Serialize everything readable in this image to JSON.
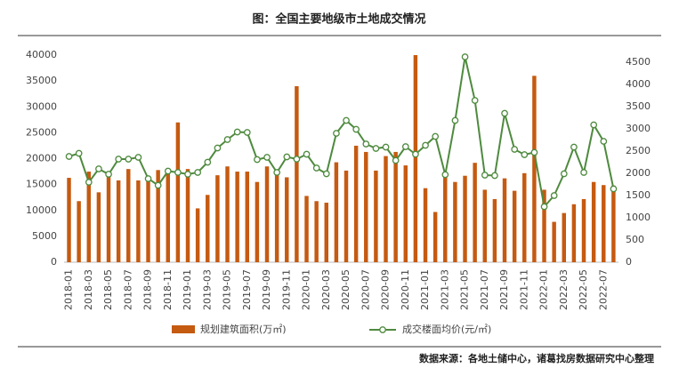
{
  "chart_data": {
    "type": "bar_line",
    "title": "图：全国主要地级市土地成交情况",
    "source": "数据来源：各地土储中心，诸葛找房数据研究中心整理",
    "categories": [
      "2018-01",
      null,
      "2018-03",
      null,
      "2018-05",
      null,
      "2018-07",
      null,
      "2018-09",
      null,
      "2018-11",
      null,
      "2019-01",
      null,
      "2019-03",
      null,
      "2019-05",
      null,
      "2019-07",
      null,
      "2019-09",
      null,
      "2019-11",
      null,
      "2020-01",
      null,
      "2020-03",
      null,
      "2020-05",
      null,
      "2020-07",
      null,
      "2020-09",
      null,
      "2020-11",
      null,
      "2021-01",
      null,
      "2021-03",
      null,
      "2021-05",
      null,
      "2021-07",
      null,
      "2021-09",
      null,
      "2021-11",
      null,
      "2022-01",
      null,
      "2022-03",
      null,
      "2022-05",
      null,
      "2022-07",
      null
    ],
    "series": [
      {
        "name": "规划建筑面积(万㎡)",
        "color": "#c55a11",
        "values": [
          16300,
          11800,
          17500,
          13500,
          17000,
          15800,
          18000,
          15800,
          15800,
          17800,
          17800,
          27000,
          18000,
          10400,
          13000,
          16800,
          18500,
          17500,
          17500,
          15500,
          18500,
          17500,
          16400,
          34000,
          12800,
          11800,
          11500,
          19300,
          17700,
          22500,
          21300,
          17700,
          20500,
          21300,
          18700,
          40000,
          14300,
          9700,
          16800,
          15500,
          16700,
          19200,
          14000,
          12200,
          16200,
          13800,
          17200,
          36000,
          14000,
          7800,
          9500,
          11200,
          12200,
          15500,
          14900,
          14800
        ]
      },
      {
        "name": "成交楼面均价(元/㎡)",
        "color": "#4e8a3e",
        "axis": "y2",
        "values": [
          2380,
          2450,
          1800,
          2100,
          1980,
          2320,
          2320,
          2360,
          1880,
          1730,
          2050,
          2020,
          1980,
          2020,
          2250,
          2570,
          2760,
          2930,
          2920,
          2310,
          2360,
          2020,
          2370,
          2320,
          2430,
          2120,
          1990,
          2900,
          3190,
          2990,
          2660,
          2560,
          2590,
          2290,
          2600,
          2430,
          2630,
          2830,
          1970,
          3190,
          4620,
          3640,
          1960,
          1950,
          3350,
          2540,
          2420,
          2470,
          1250,
          1500,
          1990,
          2590,
          2020,
          3090,
          2720,
          1650
        ]
      }
    ],
    "ylim": [
      0,
      40000
    ],
    "yticks": [
      0,
      5000,
      10000,
      15000,
      20000,
      25000,
      30000,
      35000,
      40000
    ],
    "y2lim": [
      0,
      4500
    ],
    "y2ticks": [
      0,
      500,
      1000,
      1500,
      2000,
      2500,
      3000,
      3500,
      4000,
      4500
    ],
    "grid": false
  }
}
